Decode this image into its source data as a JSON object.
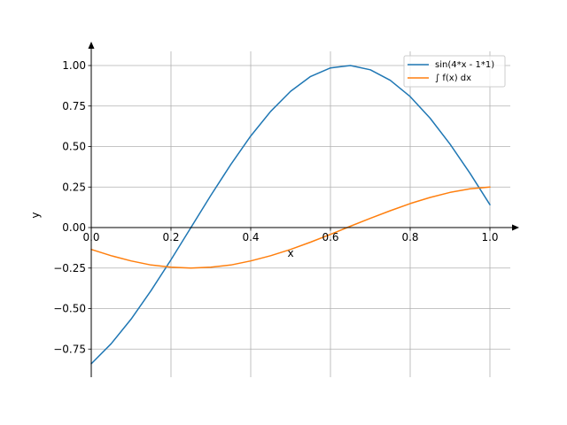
{
  "chart_data": {
    "type": "line",
    "title": "",
    "xlabel": "x",
    "ylabel": "y",
    "xlim": [
      0.0,
      1.05
    ],
    "ylim": [
      -0.92,
      1.1
    ],
    "grid": true,
    "legend_position": "top-right",
    "x_ticks": [
      "0.0",
      "0.2",
      "0.4",
      "0.6",
      "0.8",
      "1.0"
    ],
    "y_ticks": [
      "−0.75",
      "−0.50",
      "−0.25",
      "0.00",
      "0.25",
      "0.50",
      "0.75",
      "1.00"
    ],
    "x": [
      0.0,
      0.05,
      0.1,
      0.15,
      0.2,
      0.25,
      0.3,
      0.35,
      0.4,
      0.45,
      0.5,
      0.55,
      0.6,
      0.65,
      0.7,
      0.75,
      0.8,
      0.85,
      0.9,
      0.95,
      1.0
    ],
    "series": [
      {
        "name": "sin(4*x - 1*1)",
        "color": "#1f77b4",
        "values": [
          -0.841,
          -0.717,
          -0.565,
          -0.389,
          -0.199,
          0.0,
          0.199,
          0.389,
          0.565,
          0.717,
          0.841,
          0.932,
          0.985,
          1.0,
          0.974,
          0.909,
          0.808,
          0.675,
          0.515,
          0.335,
          0.141
        ]
      },
      {
        "name": "∫ f(x) dx",
        "color": "#ff7f0e",
        "values": [
          -0.135,
          -0.174,
          -0.206,
          -0.231,
          -0.245,
          -0.25,
          -0.245,
          -0.231,
          -0.206,
          -0.174,
          -0.135,
          -0.09,
          -0.042,
          0.008,
          0.057,
          0.104,
          0.148,
          0.186,
          0.217,
          0.239,
          0.25
        ]
      }
    ]
  }
}
